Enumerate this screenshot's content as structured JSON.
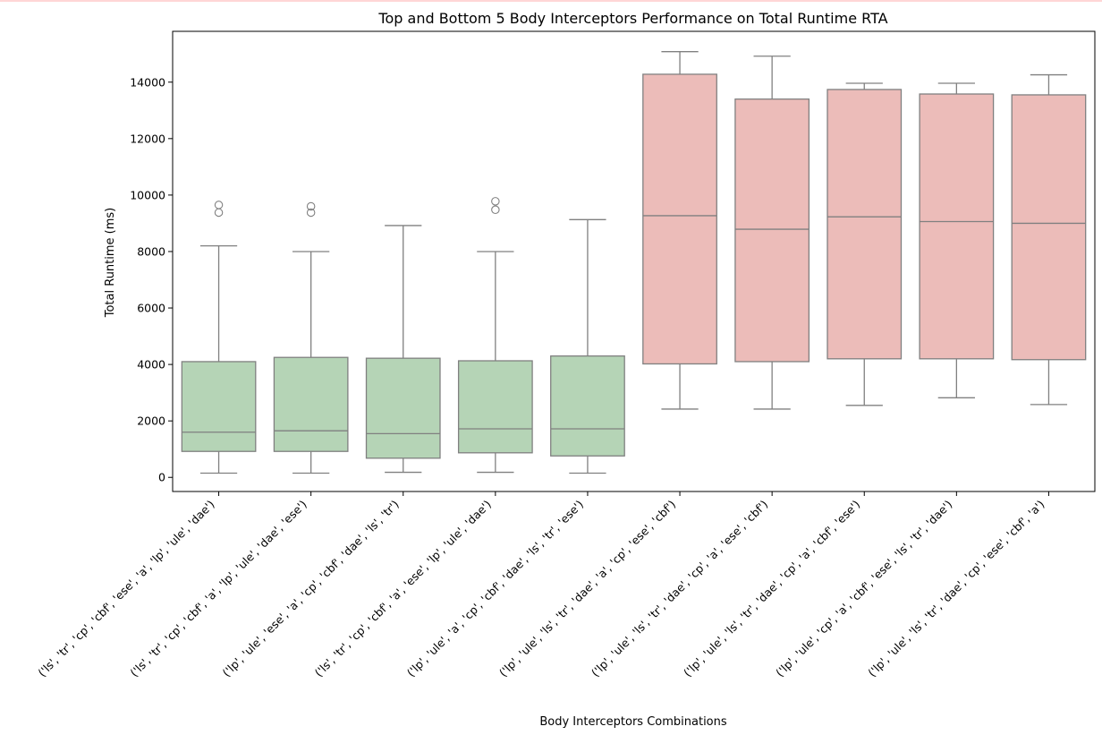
{
  "chart_data": {
    "type": "box",
    "title": "Top and Bottom 5 Body Interceptors Performance on Total Runtime RTA",
    "xlabel": "Body Interceptors Combinations",
    "ylabel": "Total Runtime (ms)",
    "ylim": [
      -500,
      15800
    ],
    "yticks": [
      0,
      2000,
      4000,
      6000,
      8000,
      10000,
      12000,
      14000
    ],
    "ytick_labels": [
      "0",
      "2000",
      "4000",
      "6000",
      "8000",
      "10000",
      "12000",
      "14000"
    ],
    "grid": false,
    "colors": {
      "bottom": "#b5d4b6",
      "top": "#ecbcb9",
      "line": "#808080"
    },
    "categories": [
      "('ls', 'tr', 'cp', 'cbf', 'ese', 'a', 'lp', 'ule', 'dae')",
      "('ls', 'tr', 'cp', 'cbf', 'a', 'lp', 'ule', 'dae', 'ese')",
      "('lp', 'ule', 'ese', 'a', 'cp', 'cbf', 'dae', 'ls', 'tr')",
      "('ls', 'tr', 'cp', 'cbf', 'a', 'ese', 'lp', 'ule', 'dae')",
      "('lp', 'ule', 'a', 'cp', 'cbf', 'dae', 'ls', 'tr', 'ese')",
      "('lp', 'ule', 'ls', 'tr', 'dae', 'a', 'cp', 'ese', 'cbf')",
      "('lp', 'ule', 'ls', 'tr', 'dae', 'cp', 'a', 'ese', 'cbf')",
      "('lp', 'ule', 'ls', 'tr', 'dae', 'cp', 'a', 'cbf', 'ese')",
      "('lp', 'ule', 'cp', 'a', 'cbf', 'ese', 'ls', 'tr', 'dae')",
      "('lp', 'ule', 'ls', 'tr', 'dae', 'cp', 'ese', 'cbf', 'a')"
    ],
    "boxes": [
      {
        "group": "bottom",
        "whislo": 150,
        "q1": 920,
        "med": 1600,
        "q3": 4100,
        "whishi": 8200,
        "fliers": [
          9380,
          9650
        ]
      },
      {
        "group": "bottom",
        "whislo": 150,
        "q1": 920,
        "med": 1650,
        "q3": 4250,
        "whishi": 8000,
        "fliers": [
          9380,
          9600
        ]
      },
      {
        "group": "bottom",
        "whislo": 180,
        "q1": 680,
        "med": 1550,
        "q3": 4220,
        "whishi": 8920,
        "fliers": []
      },
      {
        "group": "bottom",
        "whislo": 180,
        "q1": 870,
        "med": 1720,
        "q3": 4130,
        "whishi": 8000,
        "fliers": [
          9480,
          9780
        ]
      },
      {
        "group": "bottom",
        "whislo": 150,
        "q1": 760,
        "med": 1720,
        "q3": 4300,
        "whishi": 9130,
        "fliers": []
      },
      {
        "group": "top",
        "whislo": 2420,
        "q1": 4020,
        "med": 9270,
        "q3": 14280,
        "whishi": 15080,
        "fliers": []
      },
      {
        "group": "top",
        "whislo": 2420,
        "q1": 4100,
        "med": 8790,
        "q3": 13400,
        "whishi": 14920,
        "fliers": []
      },
      {
        "group": "top",
        "whislo": 2550,
        "q1": 4200,
        "med": 9230,
        "q3": 13740,
        "whishi": 13960,
        "fliers": []
      },
      {
        "group": "top",
        "whislo": 2820,
        "q1": 4200,
        "med": 9060,
        "q3": 13580,
        "whishi": 13960,
        "fliers": []
      },
      {
        "group": "top",
        "whislo": 2580,
        "q1": 4170,
        "med": 9000,
        "q3": 13550,
        "whishi": 14260,
        "fliers": []
      }
    ]
  }
}
